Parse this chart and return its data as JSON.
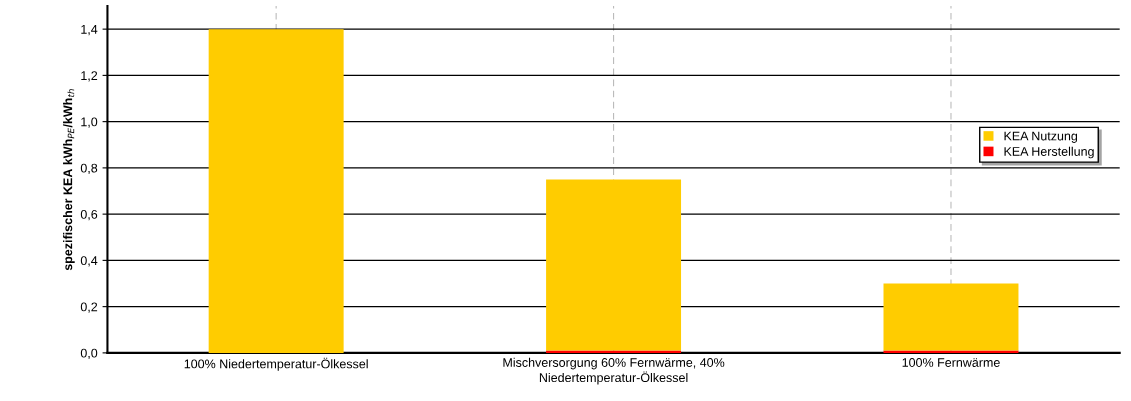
{
  "chart_data": {
    "type": "bar",
    "stacked": true,
    "ylabel": "spezifischer KEA kWh$_{PE}$/kWh$_{th}$",
    "categories": [
      "100% Niedertemperatur-Ölkessel",
      "Mischversorgung 60% Fernwärme, 40%\nNiedertemperatur-Ölkessel",
      "100% Fernwärme"
    ],
    "series": [
      {
        "name": "KEA Herstellung",
        "color": "#ff0000",
        "values": [
          0.0,
          0.01,
          0.01
        ]
      },
      {
        "name": "KEA Nutzung",
        "color": "#ffcc00",
        "values": [
          1.4,
          0.74,
          0.29
        ]
      }
    ],
    "ylim": [
      0,
      1.5
    ],
    "yticks": [
      {
        "value": 0,
        "label": "0,0"
      },
      {
        "value": 0.2,
        "label": "0,2"
      },
      {
        "value": 0.4,
        "label": "0,4"
      },
      {
        "value": 0.6,
        "label": "0,6"
      },
      {
        "value": 0.8,
        "label": "0,8"
      },
      {
        "value": 1.0,
        "label": "1,0"
      },
      {
        "value": 1.2,
        "label": "1,2"
      },
      {
        "value": 1.4,
        "label": "1,4"
      }
    ],
    "grid": true,
    "legend": "right"
  }
}
